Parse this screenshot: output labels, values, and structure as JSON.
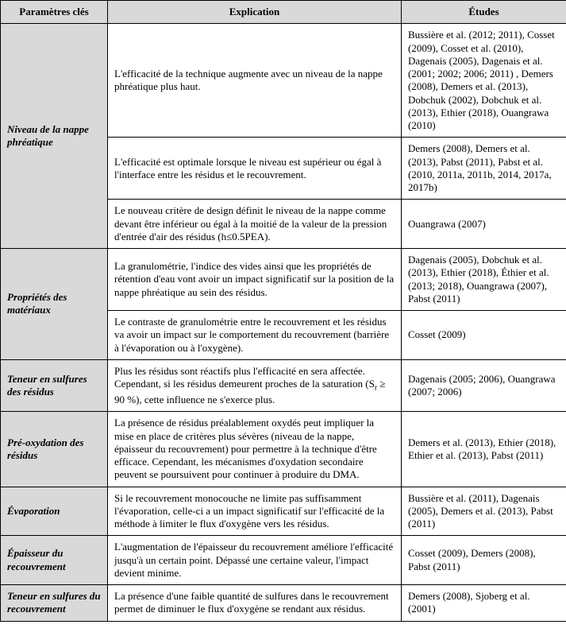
{
  "header": {
    "param": "Paramètres clés",
    "explication": "Explication",
    "etudes": "Études"
  },
  "rows": [
    {
      "param": "Niveau de la nappe phréatique",
      "cells": [
        {
          "explication": "L'efficacité de la technique augmente avec un niveau de la nappe phréatique plus haut.",
          "etudes": "Bussière et al. (2012; 2011), Cosset (2009), Cosset et al. (2010), Dagenais (2005), Dagenais et al. (2001; 2002; 2006; 2011) , Demers (2008), Demers et al. (2013), Dobchuk (2002), Dobchuk et al. (2013), Ethier (2018), Ouangrawa (2010)"
        },
        {
          "explication": "L'efficacité est optimale lorsque le niveau est supérieur ou égal à l'interface entre les résidus et le recouvrement.",
          "etudes": "Demers (2008), Demers et al. (2013), Pabst (2011), Pabst et al. (2010, 2011a, 2011b, 2014, 2017a, 2017b)"
        },
        {
          "explication": "Le nouveau critère de design définit le niveau de la nappe comme devant être inférieur ou égal à la moitié de la valeur de la pression d'entrée d'air des résidus (h≤0.5PEA).",
          "etudes": "Ouangrawa (2007)"
        }
      ]
    },
    {
      "param": "Propriétés des matériaux",
      "cells": [
        {
          "explication": "La granulométrie, l'indice des vides ainsi que les propriétés de rétention d'eau vont avoir un impact significatif sur la position de la nappe phréatique au sein des résidus.",
          "etudes": "Dagenais (2005), Dobchuk et al. (2013), Ethier (2018), Éthier et al. (2013; 2018), Ouangrawa (2007), Pabst (2011)"
        },
        {
          "explication": "Le contraste de granulométrie entre le recouvrement et les résidus va avoir un impact sur le comportement du recouvrement (barrière à l'évaporation ou à l'oxygène).",
          "etudes": "Cosset (2009)"
        }
      ]
    },
    {
      "param": "Teneur en sulfures des résidus",
      "cells": [
        {
          "explication_html": "Plus les résidus sont réactifs plus l'efficacité en sera affectée. Cependant, si les résidus demeurent proches de la saturation (S<sub>r</sub> ≥ 90 %), cette influence ne s'exerce plus.",
          "etudes": "Dagenais (2005; 2006), Ouangrawa (2007; 2006)"
        }
      ]
    },
    {
      "param": "Pré-oxydation des résidus",
      "cells": [
        {
          "explication": "La présence de résidus préalablement oxydés peut impliquer la mise en place de critères plus sévères (niveau de la nappe, épaisseur du recouvrement) pour permettre à la technique d'être efficace. Cependant, les mécanismes d'oxydation secondaire peuvent se poursuivent pour continuer à produire du DMA.",
          "etudes": "Demers et al. (2013), Ethier (2018), Ethier et al. (2013), Pabst (2011)"
        }
      ]
    },
    {
      "param": "Évaporation",
      "cells": [
        {
          "explication": "Si le recouvrement monocouche ne limite pas suffisamment l'évaporation, celle-ci a un impact significatif sur l'efficacité de la méthode à limiter le flux d'oxygène vers les résidus.",
          "etudes": "Bussière et al. (2011), Dagenais (2005), Demers et al. (2013), Pabst (2011)"
        }
      ]
    },
    {
      "param": "Épaisseur du recouvrement",
      "cells": [
        {
          "explication": "L'augmentation de l'épaisseur du recouvrement améliore l'efficacité jusqu'à un certain point. Dépassé une certaine valeur, l'impact devient minime.",
          "etudes": "Cosset (2009), Demers (2008), Pabst (2011)"
        }
      ]
    },
    {
      "param": "Teneur en sulfures du recouvrement",
      "cells": [
        {
          "explication": "La présence d'une faible quantité de sulfures dans le recouvrement permet de diminuer le flux d'oxygène se rendant aux résidus.",
          "etudes": "Demers (2008), Sjoberg et al. (2001)"
        }
      ]
    }
  ]
}
